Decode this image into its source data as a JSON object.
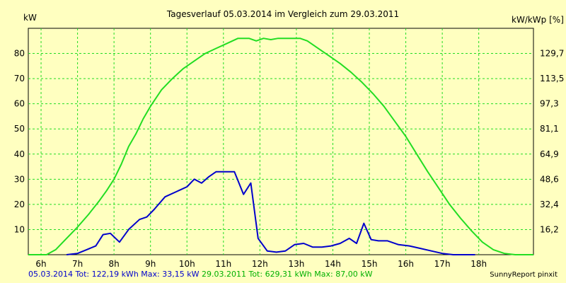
{
  "chart_data": {
    "type": "line",
    "title": "Tagesverlauf 05.03.2014 im Vergleich zum 29.03.2011",
    "ylabel_left": "kW",
    "ylabel_right": "kW/kWp [%]",
    "x_ticks": [
      "6h",
      "7h",
      "8h",
      "9h",
      "10h",
      "11h",
      "12h",
      "13h",
      "14h",
      "15h",
      "16h",
      "17h",
      "18h"
    ],
    "xlim": [
      5.65,
      19.5
    ],
    "ylim": [
      0,
      90
    ],
    "y_ticks": [
      10,
      20,
      30,
      40,
      50,
      60,
      70,
      80
    ],
    "y2_ticks": [
      "16,2",
      "32,4",
      "48,6",
      "64,9",
      "81,1",
      "97,3",
      "113,5",
      "129,7"
    ],
    "grid": true,
    "series": [
      {
        "name": "05.03.2014",
        "color": "#0000cc",
        "x": [
          6.7,
          7.0,
          7.25,
          7.5,
          7.7,
          7.9,
          8.15,
          8.4,
          8.7,
          8.9,
          9.1,
          9.4,
          9.7,
          10.0,
          10.2,
          10.4,
          10.6,
          10.8,
          11.0,
          11.3,
          11.55,
          11.75,
          11.95,
          12.2,
          12.45,
          12.7,
          12.95,
          13.2,
          13.45,
          13.7,
          13.95,
          14.2,
          14.45,
          14.65,
          14.85,
          15.05,
          15.25,
          15.5,
          15.8,
          16.1,
          16.4,
          16.7,
          17.0,
          17.3,
          17.6,
          17.9
        ],
        "y": [
          0,
          0.5,
          2,
          3.5,
          8,
          8.5,
          5,
          10,
          14,
          15,
          18,
          23,
          25,
          27,
          30,
          28.5,
          31,
          33,
          33,
          33,
          24,
          28.5,
          6.5,
          1.5,
          1,
          1.5,
          4,
          4.5,
          3,
          3,
          3.5,
          4.5,
          6.5,
          4.5,
          12.5,
          6,
          5.5,
          5.5,
          4,
          3.5,
          2.5,
          1.5,
          0.5,
          0,
          0,
          0
        ]
      },
      {
        "name": "29.03.2011",
        "color": "#22dd22",
        "x": [
          5.65,
          6.15,
          6.4,
          6.7,
          7.0,
          7.3,
          7.6,
          7.8,
          8.0,
          8.2,
          8.4,
          8.6,
          8.8,
          9.0,
          9.3,
          9.6,
          9.9,
          10.2,
          10.5,
          10.8,
          11.1,
          11.4,
          11.7,
          11.9,
          12.1,
          12.3,
          12.5,
          12.7,
          12.9,
          13.1,
          13.3,
          13.6,
          13.9,
          14.2,
          14.5,
          14.8,
          15.1,
          15.4,
          15.7,
          16.0,
          16.3,
          16.6,
          16.9,
          17.2,
          17.5,
          17.8,
          18.1,
          18.4,
          18.7,
          19.0,
          19.5
        ],
        "y": [
          0,
          0,
          2,
          6.5,
          11,
          16,
          21.5,
          25.5,
          30,
          36,
          43,
          48,
          54,
          59,
          65.5,
          70,
          74,
          77,
          80,
          82,
          84,
          86,
          86,
          85,
          86,
          85.5,
          86,
          86,
          86,
          86,
          85,
          82,
          79,
          76,
          72.5,
          68.5,
          64,
          59,
          53,
          47,
          40,
          33,
          26.5,
          20,
          14.5,
          9.5,
          5,
          2,
          0.5,
          0,
          0
        ]
      }
    ]
  },
  "footer": {
    "series1_label": "05.03.2014",
    "series1_tot": "Tot: 122,19 kWh",
    "series1_max": "Max: 33,15 kW",
    "series2_label": "29.03.2011",
    "series2_tot": "Tot: 629,31 kWh",
    "series2_max": "Max: 87,00 kW",
    "credit": "SunnyReport pinxit"
  },
  "colors": {
    "background": "#ffffc0",
    "plot_background": "#ffffc0",
    "grid": "#22dd22",
    "blue": "#0000cc",
    "green": "#22dd22"
  }
}
